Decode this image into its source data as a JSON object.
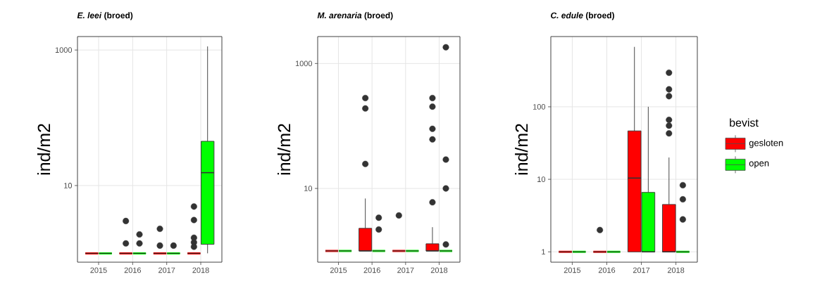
{
  "chart_data": [
    {
      "type": "box",
      "title": "*E. leei* (broed)",
      "ylabel": "ind/m2",
      "categories": [
        "2015",
        "2016",
        "2017",
        "2018"
      ],
      "log": true,
      "grid": true,
      "ylim": [
        0.74,
        1580
      ],
      "yticks": [
        10,
        1000
      ],
      "series": [
        {
          "color": "#ff0000",
          "boxes": [
            {
              "low": 1,
              "q1": 1,
              "median": 1,
              "q3": 1,
              "high": 1
            },
            {
              "low": 1,
              "q1": 1,
              "median": 1,
              "q3": 1,
              "high": 1,
              "outliers": [
                3.0,
                1.4
              ]
            },
            {
              "low": 1,
              "q1": 1,
              "median": 1,
              "q3": 1,
              "high": 1,
              "outliers": [
                2.3,
                1.3
              ]
            },
            {
              "low": 1,
              "q1": 1,
              "median": 1,
              "q3": 1,
              "high": 1,
              "outliers": [
                4.9,
                3.1,
                1.7,
                1.45,
                1.25
              ]
            }
          ]
        },
        {
          "color": "#00ff00",
          "boxes": [
            {
              "low": 1,
              "q1": 1,
              "median": 1,
              "q3": 1,
              "high": 1
            },
            {
              "low": 1,
              "q1": 1,
              "median": 1,
              "q3": 1,
              "high": 1,
              "outliers": [
                1.9,
                1.4
              ]
            },
            {
              "low": 1,
              "q1": 1,
              "median": 1,
              "q3": 1,
              "high": 1,
              "outliers": [
                1.3
              ]
            },
            {
              "low": 1,
              "q1": 1.36,
              "median": 15.5,
              "q3": 45,
              "high": 1130
            }
          ]
        }
      ]
    },
    {
      "type": "box",
      "title": "*M. arenaria* (broed)",
      "ylabel": "ind/m2",
      "categories": [
        "2015",
        "2016",
        "2017",
        "2018"
      ],
      "log": true,
      "grid": true,
      "ylim": [
        0.66,
        2700
      ],
      "yticks": [
        10,
        1000
      ],
      "series": [
        {
          "color": "#ff0000",
          "boxes": [
            {
              "low": 1,
              "q1": 1,
              "median": 1,
              "q3": 1,
              "high": 1
            },
            {
              "low": 1,
              "q1": 1,
              "median": 1,
              "q3": 2.3,
              "high": 6.9,
              "outliers": [
                24.7,
                191,
                280
              ]
            },
            {
              "low": 1,
              "q1": 1,
              "median": 1,
              "q3": 1,
              "high": 1,
              "outliers": [
                3.7
              ]
            },
            {
              "low": 1,
              "q1": 1,
              "median": 1,
              "q3": 1.3,
              "high": 2.4,
              "outliers": [
                6.0,
                61,
                90,
                204,
                280
              ]
            }
          ]
        },
        {
          "color": "#00ff00",
          "boxes": [
            {
              "low": 1,
              "q1": 1,
              "median": 1,
              "q3": 1,
              "high": 1
            },
            {
              "low": 1,
              "q1": 1,
              "median": 1,
              "q3": 1,
              "high": 1,
              "outliers": [
                3.4,
                2.2
              ]
            },
            {
              "low": 1,
              "q1": 1,
              "median": 1,
              "q3": 1,
              "high": 1
            },
            {
              "low": 1,
              "q1": 1,
              "median": 1,
              "q3": 1,
              "high": 1,
              "outliers": [
                1820,
                29,
                10,
                1.27
              ]
            }
          ]
        }
      ]
    },
    {
      "type": "box",
      "title": "*C. edule* (broed)",
      "ylabel": "ind/m2",
      "categories": [
        "2015",
        "2016",
        "2017",
        "2018"
      ],
      "log": true,
      "grid": true,
      "ylim": [
        0.72,
        930
      ],
      "yticks": [
        1,
        10,
        100
      ],
      "legend": "right",
      "legend_title": "bevist",
      "series": [
        {
          "name": "gesloten",
          "color": "#ff0000",
          "boxes": [
            {
              "low": 1,
              "q1": 1,
              "median": 1,
              "q3": 1,
              "high": 1
            },
            {
              "low": 1,
              "q1": 1,
              "median": 1,
              "q3": 1,
              "high": 1,
              "outliers": [
                2.0
              ]
            },
            {
              "low": 1,
              "q1": 1,
              "median": 10.4,
              "q3": 46.5,
              "high": 670
            },
            {
              "low": 1,
              "q1": 1,
              "median": 1,
              "q3": 4.5,
              "high": 20,
              "outliers": [
                295,
                174,
                140,
                66,
                55,
                43
              ]
            }
          ]
        },
        {
          "name": "open",
          "color": "#00ff00",
          "boxes": [
            {
              "low": 1,
              "q1": 1,
              "median": 1,
              "q3": 1,
              "high": 1
            },
            {
              "low": 1,
              "q1": 1,
              "median": 1,
              "q3": 1,
              "high": 1
            },
            {
              "low": 1,
              "q1": 1,
              "median": 1,
              "q3": 6.6,
              "high": 100
            },
            {
              "low": 1,
              "q1": 1,
              "median": 1,
              "q3": 1,
              "high": 1,
              "outliers": [
                8.3,
                5.3,
                2.8
              ]
            }
          ]
        }
      ]
    }
  ]
}
